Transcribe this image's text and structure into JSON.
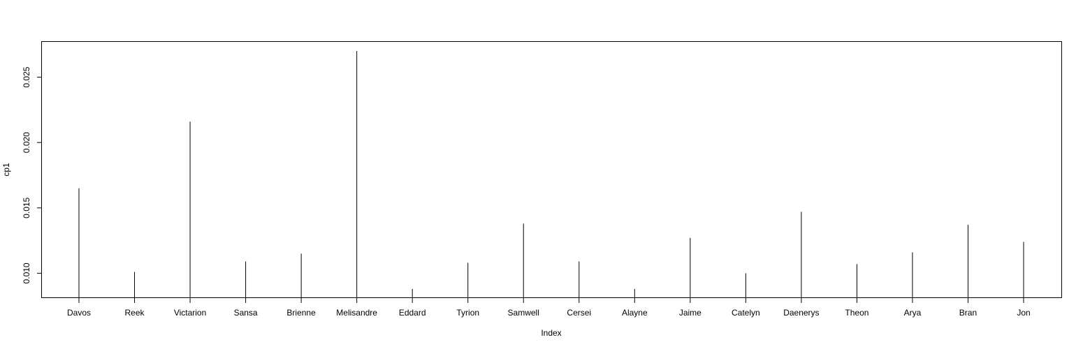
{
  "chart_data": {
    "type": "bar",
    "style": "vertical lines from plot bottom (R type='h')",
    "categories": [
      "Davos",
      "Reek",
      "Victarion",
      "Sansa",
      "Brienne",
      "Melisandre",
      "Eddard",
      "Tyrion",
      "Samwell",
      "Cersei",
      "Alayne",
      "Jaime",
      "Catelyn",
      "Daenerys",
      "Theon",
      "Arya",
      "Bran",
      "Jon"
    ],
    "values": [
      0.0165,
      0.0101,
      0.0216,
      0.0109,
      0.0115,
      0.027,
      0.0088,
      0.0108,
      0.0138,
      0.0109,
      0.0088,
      0.0127,
      0.01,
      0.0147,
      0.0107,
      0.0116,
      0.0137,
      0.0124
    ],
    "xlabel": "Index",
    "ylabel": "cp1",
    "ylim": [
      0.0081,
      0.0277
    ],
    "yticks": [
      "0.010",
      "0.015",
      "0.020",
      "0.025"
    ],
    "grid": false,
    "line_color": "#000000"
  }
}
